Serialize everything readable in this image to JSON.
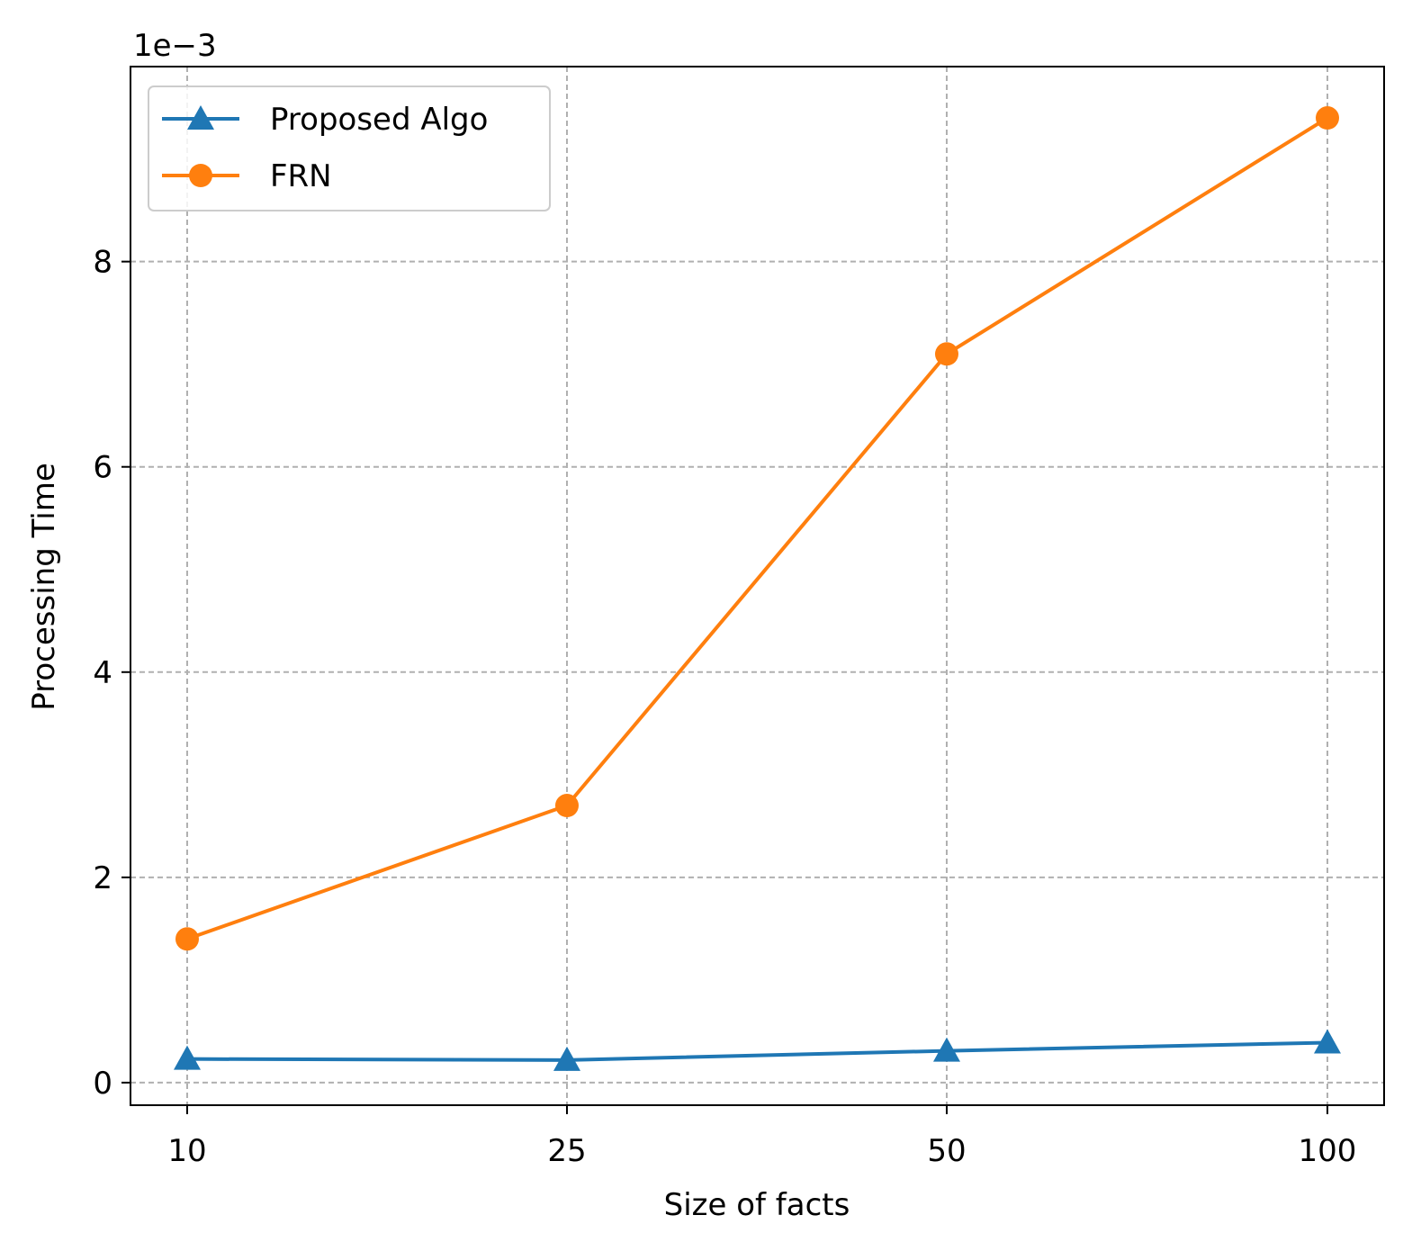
{
  "chart_data": {
    "type": "line",
    "categories": [
      "10",
      "25",
      "50",
      "100"
    ],
    "xlabel": "Size of facts",
    "ylabel": "Processing Time",
    "offset_label": "1e−3",
    "yscale_multiplier": 0.001,
    "ylim": [
      -0.22,
      9.9
    ],
    "yticks": [
      0,
      2,
      4,
      6,
      8
    ],
    "ytick_labels": [
      "0",
      "2",
      "4",
      "6",
      "8"
    ],
    "grid": true,
    "legend_position": "top-left",
    "series": [
      {
        "name": "Proposed Algo",
        "values": [
          0.23,
          0.22,
          0.31,
          0.39
        ],
        "color": "#1f77b4",
        "marker": "triangle-up"
      },
      {
        "name": "FRN",
        "values": [
          1.4,
          2.7,
          7.1,
          9.4
        ],
        "color": "#ff7f0e",
        "marker": "circle"
      }
    ]
  }
}
